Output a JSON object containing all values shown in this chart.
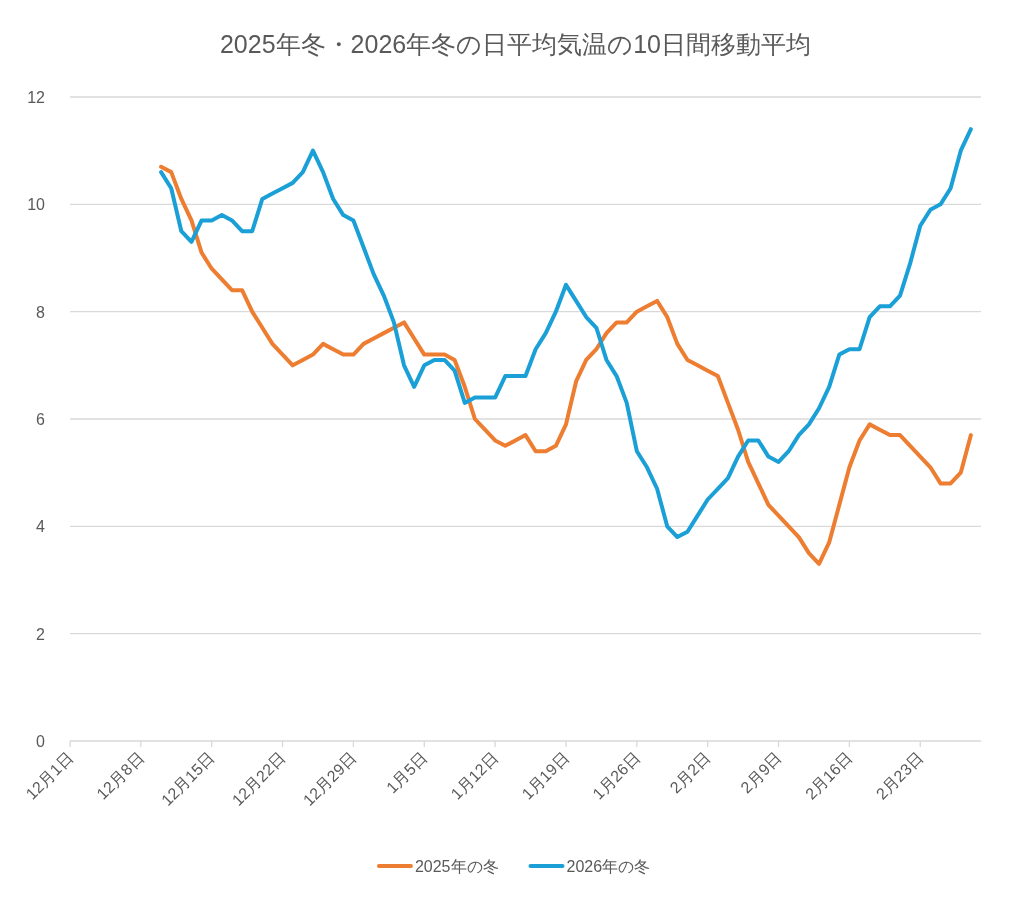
{
  "chart_data": {
    "type": "line",
    "title": "2025年冬・2026年冬の日平均気温の10日間移動平均",
    "x": [
      "2025-12-10",
      "2025-12-11",
      "2025-12-12",
      "2025-12-13",
      "2025-12-14",
      "2025-12-15",
      "2025-12-16",
      "2025-12-17",
      "2025-12-18",
      "2025-12-19",
      "2025-12-20",
      "2025-12-21",
      "2025-12-22",
      "2025-12-23",
      "2025-12-24",
      "2025-12-25",
      "2025-12-26",
      "2025-12-27",
      "2025-12-28",
      "2025-12-29",
      "2025-12-30",
      "2025-12-31",
      "2026-01-01",
      "2026-01-02",
      "2026-01-03",
      "2026-01-04",
      "2026-01-05",
      "2026-01-06",
      "2026-01-07",
      "2026-01-08",
      "2026-01-09",
      "2026-01-10",
      "2026-01-11",
      "2026-01-12",
      "2026-01-13",
      "2026-01-14",
      "2026-01-15",
      "2026-01-16",
      "2026-01-17",
      "2026-01-18",
      "2026-01-19",
      "2026-01-20",
      "2026-01-21",
      "2026-01-22",
      "2026-01-23",
      "2026-01-24",
      "2026-01-25",
      "2026-01-26",
      "2026-01-27",
      "2026-01-28",
      "2026-01-29",
      "2026-01-30",
      "2026-01-31",
      "2026-02-01",
      "2026-02-02",
      "2026-02-03",
      "2026-02-04",
      "2026-02-05",
      "2026-02-06",
      "2026-02-07",
      "2026-02-08",
      "2026-02-09",
      "2026-02-10",
      "2026-02-11",
      "2026-02-12",
      "2026-02-13",
      "2026-02-14",
      "2026-02-15",
      "2026-02-16",
      "2026-02-17",
      "2026-02-18",
      "2026-02-19",
      "2026-02-20",
      "2026-02-21",
      "2026-02-22",
      "2026-02-23",
      "2026-02-24",
      "2026-02-25",
      "2026-02-26",
      "2026-02-27",
      "2026-02-28"
    ],
    "series": [
      {
        "name": "2025年の冬",
        "color": "#ed7d31",
        "values": [
          10.7,
          10.6,
          10.1,
          9.7,
          9.1,
          8.8,
          8.6,
          8.4,
          8.4,
          8.0,
          7.7,
          7.4,
          7.2,
          7.0,
          7.1,
          7.2,
          7.4,
          7.3,
          7.2,
          7.2,
          7.4,
          7.5,
          7.6,
          7.7,
          7.8,
          7.5,
          7.2,
          7.2,
          7.2,
          7.1,
          6.6,
          6.0,
          5.8,
          5.6,
          5.5,
          5.6,
          5.7,
          5.4,
          5.4,
          5.5,
          5.9,
          6.7,
          7.1,
          7.3,
          7.6,
          7.8,
          7.8,
          8.0,
          8.1,
          8.2,
          7.9,
          7.4,
          7.1,
          7.0,
          6.9,
          6.8,
          6.3,
          5.8,
          5.2,
          4.8,
          4.4,
          4.2,
          4.0,
          3.8,
          3.5,
          3.3,
          3.7,
          4.4,
          5.1,
          5.6,
          5.9,
          5.8,
          5.7,
          5.7,
          5.5,
          5.3,
          5.1,
          4.8,
          4.8,
          5.0,
          5.7
        ]
      },
      {
        "name": "2026年の冬",
        "color": "#1a9fd6",
        "values": [
          10.6,
          10.3,
          9.5,
          9.3,
          9.7,
          9.7,
          9.8,
          9.7,
          9.5,
          9.5,
          10.1,
          10.2,
          10.3,
          10.4,
          10.6,
          11.0,
          10.6,
          10.1,
          9.8,
          9.7,
          9.2,
          8.7,
          8.3,
          7.8,
          7.0,
          6.6,
          7.0,
          7.1,
          7.1,
          6.9,
          6.3,
          6.4,
          6.4,
          6.4,
          6.8,
          6.8,
          6.8,
          7.3,
          7.6,
          8.0,
          8.5,
          8.2,
          7.9,
          7.7,
          7.1,
          6.8,
          6.3,
          5.4,
          5.1,
          4.7,
          4.0,
          3.8,
          3.9,
          4.2,
          4.5,
          4.7,
          4.9,
          5.3,
          5.6,
          5.6,
          5.3,
          5.2,
          5.4,
          5.7,
          5.9,
          6.2,
          6.6,
          7.2,
          7.3,
          7.3,
          7.9,
          8.1,
          8.1,
          8.3,
          8.9,
          9.6,
          9.9,
          10.0,
          10.3,
          11.0,
          11.4
        ]
      }
    ],
    "xlim": [
      "2025-12-01",
      "2026-03-01"
    ],
    "xticks": [
      {
        "value": "2025-12-01",
        "label": "12月1日"
      },
      {
        "value": "2025-12-08",
        "label": "12月8日"
      },
      {
        "value": "2025-12-15",
        "label": "12月15日"
      },
      {
        "value": "2025-12-22",
        "label": "12月22日"
      },
      {
        "value": "2025-12-29",
        "label": "12月29日"
      },
      {
        "value": "2026-01-05",
        "label": "1月5日"
      },
      {
        "value": "2026-01-12",
        "label": "1月12日"
      },
      {
        "value": "2026-01-19",
        "label": "1月19日"
      },
      {
        "value": "2026-01-26",
        "label": "1月26日"
      },
      {
        "value": "2026-02-02",
        "label": "2月2日"
      },
      {
        "value": "2026-02-09",
        "label": "2月9日"
      },
      {
        "value": "2026-02-16",
        "label": "2月16日"
      },
      {
        "value": "2026-02-23",
        "label": "2月23日"
      }
    ],
    "ylim": [
      0,
      12
    ],
    "yticks": [
      0,
      2,
      4,
      6,
      8,
      10,
      12
    ],
    "grid": "y",
    "legend": "bottom"
  }
}
